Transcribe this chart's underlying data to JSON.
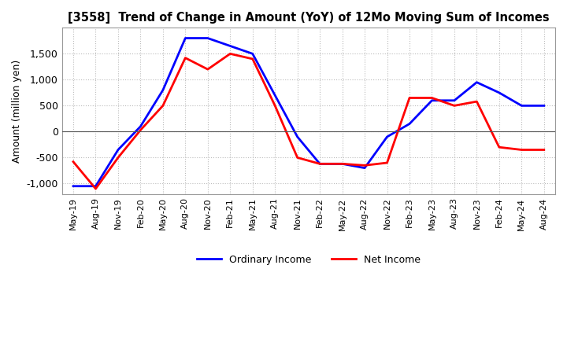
{
  "title": "[3558]  Trend of Change in Amount (YoY) of 12Mo Moving Sum of Incomes",
  "ylabel": "Amount (million yen)",
  "ylim": [
    -1200,
    2000
  ],
  "yticks": [
    -1000,
    -500,
    0,
    500,
    1000,
    1500
  ],
  "background_color": "#ffffff",
  "grid_color": "#bbbbbb",
  "x_labels": [
    "May-19",
    "Aug-19",
    "Nov-19",
    "Feb-20",
    "May-20",
    "Aug-20",
    "Nov-20",
    "Feb-21",
    "May-21",
    "Aug-21",
    "Nov-21",
    "Feb-22",
    "May-22",
    "Aug-22",
    "Nov-22",
    "Feb-23",
    "May-23",
    "Aug-23",
    "Nov-23",
    "Feb-24",
    "May-24",
    "Aug-24"
  ],
  "ordinary_income": [
    -1050,
    -1050,
    -350,
    100,
    800,
    1800,
    1800,
    1650,
    1500,
    700,
    -100,
    -620,
    -620,
    -700,
    -100,
    150,
    600,
    600,
    950,
    750,
    500,
    500
  ],
  "net_income": [
    -580,
    -1100,
    -500,
    30,
    500,
    1420,
    1200,
    1500,
    1400,
    500,
    -500,
    -620,
    -620,
    -650,
    -600,
    650,
    650,
    500,
    580,
    -300,
    -350,
    -350
  ],
  "ordinary_color": "#0000ff",
  "net_color": "#ff0000",
  "line_width": 2.0
}
